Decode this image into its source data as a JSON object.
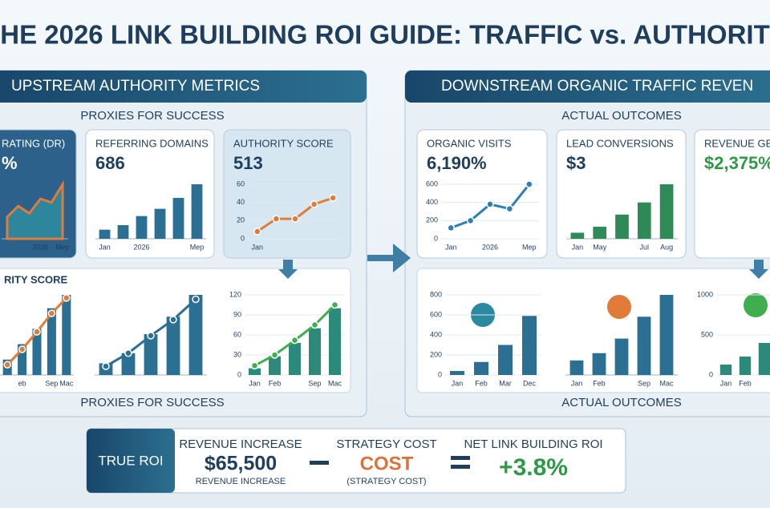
{
  "title": "HE 2026 LINK BUILDING ROI GUIDE: TRAFFIC vs. AUTHORIT",
  "left": {
    "header": "UPSTREAM AUTHORITY METRICS",
    "subtitle": "PROXIES FOR SUCCESS",
    "section_label": "RITY SCORE",
    "footer": "PROXIES FOR SUCCESS",
    "cards": [
      {
        "title": "RATING (DR)",
        "value": "%",
        "chart": {
          "type": "area",
          "categories": [
            null,
            null,
            null,
            "2026",
            null,
            "Mep"
          ],
          "values": [
            30,
            45,
            35,
            55,
            50,
            75
          ],
          "color": "#2f9fa8"
        }
      },
      {
        "title": "REFERRING DOMAINS",
        "value": "686",
        "chart": {
          "type": "bar",
          "categories": [
            "Jan",
            null,
            "2026",
            null,
            null,
            "Mep"
          ],
          "values": [
            10,
            15,
            25,
            33,
            45,
            60
          ],
          "color": "#2b6f93"
        }
      },
      {
        "title": "AUTHORITY SCORE",
        "value": "513",
        "chart": {
          "type": "line",
          "categories": [
            "Jan",
            null,
            null,
            null,
            null
          ],
          "values": [
            8,
            22,
            22,
            38,
            45
          ],
          "color": "#e07b39",
          "ylim": [
            0,
            60
          ],
          "yticks": [
            0,
            20,
            40,
            60
          ]
        }
      }
    ],
    "charts": [
      {
        "type": "barline",
        "categories": [
          null,
          "eb",
          null,
          "Sep",
          "Mac"
        ],
        "values": [
          15,
          30,
          45,
          65,
          78
        ],
        "line": [
          10,
          25,
          42,
          60,
          75
        ],
        "color": "#2b6f93",
        "line_color": "#e07b39"
      },
      {
        "type": "barline",
        "categories": [
          null,
          null,
          null,
          null,
          null
        ],
        "values": [
          8,
          15,
          28,
          40,
          55
        ],
        "line": [
          6,
          15,
          27,
          38,
          52
        ],
        "color": "#2b6f93",
        "line_color": "#2b6f93"
      },
      {
        "type": "barline",
        "categories": [
          "Jan",
          "Feb",
          null,
          "Sep",
          "Mac"
        ],
        "values": [
          10,
          28,
          48,
          70,
          100
        ],
        "line": [
          14,
          30,
          52,
          75,
          105
        ],
        "color": "#2b8a7a",
        "line_color": "#3fae4f",
        "ylim": [
          0,
          120
        ],
        "yticks": [
          0,
          30,
          60,
          90,
          120
        ]
      }
    ]
  },
  "right": {
    "header": "DOWNSTREAM ORGANIC TRAFFIC REVEN",
    "subtitle": "ACTUAL OUTCOMES",
    "footer": "ACTUAL OUTCOMES",
    "cards": [
      {
        "title": "ORGANIC VISITS",
        "value": "6,190%",
        "chart": {
          "type": "line",
          "categories": [
            "Jan",
            null,
            "2026",
            null,
            "Mep"
          ],
          "values": [
            120,
            200,
            380,
            330,
            600
          ],
          "color": "#2b7fb5",
          "ylim": [
            0,
            600
          ],
          "yticks": [
            0,
            200,
            400,
            600
          ]
        }
      },
      {
        "title": "LEAD CONVERSIONS",
        "value": "$3",
        "chart": {
          "type": "bar",
          "categories": [
            "Jan",
            "May",
            null,
            "Jul",
            "Aug"
          ],
          "values": [
            5,
            10,
            20,
            30,
            45
          ],
          "color": "#2e8a56"
        }
      },
      {
        "title": "REVENUE GE",
        "value": "$2,375%"
      }
    ],
    "charts": [
      {
        "type": "bar",
        "categories": [
          "Jan",
          "Feb",
          "Mar",
          "Dec"
        ],
        "values": [
          40,
          130,
          300,
          590
        ],
        "color": "#2b6f93",
        "ylim": [
          0,
          800
        ],
        "yticks": [
          0,
          200,
          400,
          600,
          800
        ]
      },
      {
        "type": "bar",
        "categories": [
          "Jan",
          "Feb",
          null,
          "Sep",
          "Mac"
        ],
        "values": [
          10,
          15,
          25,
          40,
          55
        ],
        "color": "#2b6f93"
      },
      {
        "type": "bar",
        "categories": [
          "Jan",
          "Feb",
          null
        ],
        "values": [
          130,
          230,
          400
        ],
        "color": "#2b8a7a",
        "ylim": [
          0,
          1000
        ],
        "yticks": [
          0,
          500,
          1000
        ]
      }
    ]
  },
  "roi": {
    "label": "TRUE ROI",
    "revenue_title": "REVENUE INCREASE",
    "revenue_value": "$65,500",
    "revenue_note": "REVENUE INCREASE",
    "cost_title": "STRATEGY COST",
    "cost_value": "COST",
    "cost_note": "(STRATEGY COST)",
    "net_title": "NET LINK BUILDING ROI",
    "net_value": "+3.8%"
  }
}
